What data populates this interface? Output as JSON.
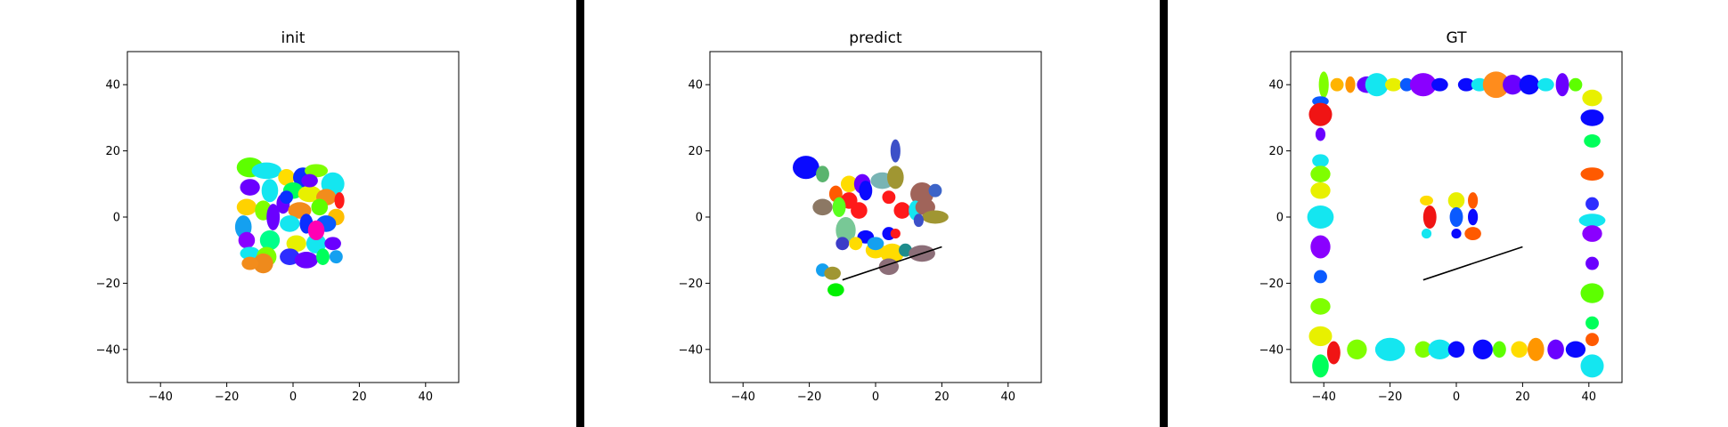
{
  "chart_data": [
    {
      "type": "scatter",
      "title": "init",
      "xlabel": "",
      "ylabel": "",
      "xlim": [
        -50,
        50
      ],
      "ylim": [
        -50,
        50
      ],
      "xticks": [
        -40,
        -20,
        0,
        20,
        40
      ],
      "yticks": [
        -40,
        -20,
        0,
        20,
        40
      ],
      "tick_labels_x": [
        "−40",
        "−20",
        "0",
        "20",
        "40"
      ],
      "tick_labels_y": [
        "−40",
        "−20",
        "0",
        "20",
        "40"
      ],
      "grid": false,
      "ellipses": [
        {
          "x": -13,
          "y": 15,
          "w": 8,
          "h": 6,
          "color": "#5dff00"
        },
        {
          "x": -8,
          "y": 14,
          "w": 9,
          "h": 5,
          "color": "#14e6f0"
        },
        {
          "x": -2,
          "y": 12,
          "w": 5,
          "h": 5,
          "color": "#ffdd00"
        },
        {
          "x": 3,
          "y": 12,
          "w": 6,
          "h": 6,
          "color": "#0a2fff"
        },
        {
          "x": 7,
          "y": 14,
          "w": 7,
          "h": 4,
          "color": "#7fff00"
        },
        {
          "x": 12,
          "y": 10,
          "w": 7,
          "h": 7,
          "color": "#14e6f0"
        },
        {
          "x": -13,
          "y": 9,
          "w": 6,
          "h": 5,
          "color": "#6a00ff"
        },
        {
          "x": -7,
          "y": 8,
          "w": 5,
          "h": 7,
          "color": "#14e6f0"
        },
        {
          "x": 0,
          "y": 8,
          "w": 6,
          "h": 5,
          "color": "#00ff5a"
        },
        {
          "x": 5,
          "y": 7,
          "w": 7,
          "h": 5,
          "color": "#e8f000"
        },
        {
          "x": 10,
          "y": 6,
          "w": 6,
          "h": 5,
          "color": "#f28c1c"
        },
        {
          "x": 14,
          "y": 5,
          "w": 3,
          "h": 5,
          "color": "#ff1a1a"
        },
        {
          "x": -14,
          "y": 3,
          "w": 6,
          "h": 5,
          "color": "#ffd200"
        },
        {
          "x": -9,
          "y": 2,
          "w": 5,
          "h": 6,
          "color": "#7fff00"
        },
        {
          "x": -3,
          "y": 4,
          "w": 4,
          "h": 6,
          "color": "#6a00ff"
        },
        {
          "x": 2,
          "y": 2,
          "w": 7,
          "h": 5,
          "color": "#f28c1c"
        },
        {
          "x": 8,
          "y": 3,
          "w": 5,
          "h": 5,
          "color": "#5dff00"
        },
        {
          "x": 13,
          "y": 0,
          "w": 5,
          "h": 5,
          "color": "#ffbe00"
        },
        {
          "x": -15,
          "y": -3,
          "w": 5,
          "h": 7,
          "color": "#14a0f0"
        },
        {
          "x": -6,
          "y": 0,
          "w": 4,
          "h": 8,
          "color": "#6a00ff"
        },
        {
          "x": -1,
          "y": -2,
          "w": 6,
          "h": 5,
          "color": "#14e6f0"
        },
        {
          "x": 4,
          "y": -2,
          "w": 4,
          "h": 6,
          "color": "#0a2fff"
        },
        {
          "x": 10,
          "y": -2,
          "w": 6,
          "h": 5,
          "color": "#0a5aff"
        },
        {
          "x": -14,
          "y": -7,
          "w": 5,
          "h": 5,
          "color": "#8a00ff"
        },
        {
          "x": -7,
          "y": -7,
          "w": 6,
          "h": 6,
          "color": "#00ff8a"
        },
        {
          "x": 1,
          "y": -8,
          "w": 6,
          "h": 5,
          "color": "#e8f000"
        },
        {
          "x": 7,
          "y": -8,
          "w": 6,
          "h": 6,
          "color": "#14e6f0"
        },
        {
          "x": 12,
          "y": -8,
          "w": 5,
          "h": 4,
          "color": "#6a00ff"
        },
        {
          "x": -13,
          "y": -11,
          "w": 6,
          "h": 4,
          "color": "#14e6f0"
        },
        {
          "x": -8,
          "y": -12,
          "w": 6,
          "h": 6,
          "color": "#7fff00"
        },
        {
          "x": -1,
          "y": -12,
          "w": 6,
          "h": 5,
          "color": "#2d2dff"
        },
        {
          "x": 4,
          "y": -13,
          "w": 7,
          "h": 5,
          "color": "#6a00ff"
        },
        {
          "x": 9,
          "y": -12,
          "w": 4,
          "h": 5,
          "color": "#00ff5a"
        },
        {
          "x": 13,
          "y": -12,
          "w": 4,
          "h": 4,
          "color": "#14a0f0"
        },
        {
          "x": -9,
          "y": -14,
          "w": 6,
          "h": 6,
          "color": "#ee8a1c"
        },
        {
          "x": -13,
          "y": -14,
          "w": 5,
          "h": 4,
          "color": "#f28c1c"
        },
        {
          "x": 5,
          "y": 11,
          "w": 5,
          "h": 4,
          "color": "#6a00ff"
        },
        {
          "x": -2,
          "y": 6,
          "w": 4,
          "h": 4,
          "color": "#0a2fff"
        },
        {
          "x": 7,
          "y": -4,
          "w": 5,
          "h": 6,
          "color": "#ff00b4"
        }
      ],
      "lines": []
    },
    {
      "type": "scatter",
      "title": "predict",
      "xlabel": "",
      "ylabel": "",
      "xlim": [
        -50,
        50
      ],
      "ylim": [
        -50,
        50
      ],
      "xticks": [
        -40,
        -20,
        0,
        20,
        40
      ],
      "yticks": [
        -40,
        -20,
        0,
        20,
        40
      ],
      "tick_labels_x": [
        "−40",
        "−20",
        "0",
        "20",
        "40"
      ],
      "tick_labels_y": [
        "−40",
        "−20",
        "0",
        "20",
        "40"
      ],
      "grid": false,
      "ellipses": [
        {
          "x": -21,
          "y": 15,
          "w": 8,
          "h": 7,
          "color": "#0a0aff"
        },
        {
          "x": -16,
          "y": 13,
          "w": 4,
          "h": 5,
          "color": "#5ab46e"
        },
        {
          "x": 6,
          "y": 20,
          "w": 3,
          "h": 7,
          "color": "#3c50c8"
        },
        {
          "x": -8,
          "y": 10,
          "w": 5,
          "h": 5,
          "color": "#ffdc00"
        },
        {
          "x": -4,
          "y": 10,
          "w": 5,
          "h": 6,
          "color": "#6a00ff"
        },
        {
          "x": 2,
          "y": 11,
          "w": 7,
          "h": 5,
          "color": "#78b4b4"
        },
        {
          "x": 6,
          "y": 12,
          "w": 5,
          "h": 7,
          "color": "#a09632"
        },
        {
          "x": -12,
          "y": 7,
          "w": 4,
          "h": 5,
          "color": "#ff5a00"
        },
        {
          "x": -8,
          "y": 5,
          "w": 5,
          "h": 5,
          "color": "#ff1a1a"
        },
        {
          "x": -3,
          "y": 8,
          "w": 4,
          "h": 6,
          "color": "#0a0aff"
        },
        {
          "x": 4,
          "y": 6,
          "w": 4,
          "h": 4,
          "color": "#ff1a1a"
        },
        {
          "x": 14,
          "y": 7,
          "w": 7,
          "h": 7,
          "color": "#a0645a"
        },
        {
          "x": 18,
          "y": 8,
          "w": 4,
          "h": 4,
          "color": "#3c64c8"
        },
        {
          "x": -16,
          "y": 3,
          "w": 6,
          "h": 5,
          "color": "#8c7864"
        },
        {
          "x": -11,
          "y": 3,
          "w": 4,
          "h": 6,
          "color": "#5aff1e"
        },
        {
          "x": -5,
          "y": 2,
          "w": 5,
          "h": 5,
          "color": "#ff1a1a"
        },
        {
          "x": 8,
          "y": 2,
          "w": 5,
          "h": 5,
          "color": "#ff1a1a"
        },
        {
          "x": 12,
          "y": 2,
          "w": 4,
          "h": 6,
          "color": "#14e6f0"
        },
        {
          "x": 15,
          "y": 3,
          "w": 6,
          "h": 5,
          "color": "#a0645a"
        },
        {
          "x": 18,
          "y": 0,
          "w": 8,
          "h": 4,
          "color": "#a09632"
        },
        {
          "x": 13,
          "y": -1,
          "w": 3,
          "h": 4,
          "color": "#3c50c8"
        },
        {
          "x": -9,
          "y": -4,
          "w": 6,
          "h": 8,
          "color": "#78c896"
        },
        {
          "x": -3,
          "y": -6,
          "w": 5,
          "h": 4,
          "color": "#0a0aff"
        },
        {
          "x": 4,
          "y": -5,
          "w": 4,
          "h": 4,
          "color": "#0a0aff"
        },
        {
          "x": 6,
          "y": -5,
          "w": 3,
          "h": 3,
          "color": "#ff1a1a"
        },
        {
          "x": -10,
          "y": -8,
          "w": 4,
          "h": 4,
          "color": "#3c3cc8"
        },
        {
          "x": -6,
          "y": -8,
          "w": 4,
          "h": 4,
          "color": "#ffdc00"
        },
        {
          "x": 0,
          "y": -10,
          "w": 6,
          "h": 5,
          "color": "#ffdc00"
        },
        {
          "x": 5,
          "y": -11,
          "w": 7,
          "h": 6,
          "color": "#ffdc00"
        },
        {
          "x": 9,
          "y": -10,
          "w": 4,
          "h": 4,
          "color": "#1e8c8c"
        },
        {
          "x": 14,
          "y": -11,
          "w": 8,
          "h": 5,
          "color": "#8c6e78"
        },
        {
          "x": 4,
          "y": -15,
          "w": 6,
          "h": 5,
          "color": "#8c6e78"
        },
        {
          "x": -16,
          "y": -16,
          "w": 4,
          "h": 4,
          "color": "#14a0f0"
        },
        {
          "x": -13,
          "y": -17,
          "w": 5,
          "h": 4,
          "color": "#a09632"
        },
        {
          "x": -12,
          "y": -22,
          "w": 5,
          "h": 4,
          "color": "#00f000"
        },
        {
          "x": 0,
          "y": -8,
          "w": 5,
          "h": 4,
          "color": "#14a0f0"
        }
      ],
      "lines": [
        {
          "x1": -10,
          "y1": -19,
          "x2": 20,
          "y2": -9,
          "color": "#000000"
        }
      ]
    },
    {
      "type": "scatter",
      "title": "GT",
      "xlabel": "",
      "ylabel": "",
      "xlim": [
        -50,
        50
      ],
      "ylim": [
        -50,
        50
      ],
      "xticks": [
        -40,
        -20,
        0,
        20,
        40
      ],
      "yticks": [
        -40,
        -20,
        0,
        20,
        40
      ],
      "tick_labels_x": [
        "−40",
        "−20",
        "0",
        "20",
        "40"
      ],
      "tick_labels_y": [
        "−40",
        "−20",
        "0",
        "20",
        "40"
      ],
      "grid": false,
      "ellipses": [
        {
          "x": -40,
          "y": 40,
          "w": 3,
          "h": 8,
          "color": "#7fff00"
        },
        {
          "x": -36,
          "y": 40,
          "w": 4,
          "h": 4,
          "color": "#ffb400"
        },
        {
          "x": -32,
          "y": 40,
          "w": 3,
          "h": 5,
          "color": "#ff9600"
        },
        {
          "x": -27,
          "y": 40,
          "w": 6,
          "h": 5,
          "color": "#6a00ff"
        },
        {
          "x": -24,
          "y": 40,
          "w": 7,
          "h": 7,
          "color": "#14e6f0"
        },
        {
          "x": -19,
          "y": 40,
          "w": 5,
          "h": 4,
          "color": "#e8f000"
        },
        {
          "x": -15,
          "y": 40,
          "w": 4,
          "h": 4,
          "color": "#0a5aff"
        },
        {
          "x": -10,
          "y": 40,
          "w": 8,
          "h": 7,
          "color": "#8a00ff"
        },
        {
          "x": -5,
          "y": 40,
          "w": 5,
          "h": 4,
          "color": "#0a0aff"
        },
        {
          "x": 3,
          "y": 40,
          "w": 5,
          "h": 4,
          "color": "#0a0aff"
        },
        {
          "x": 7,
          "y": 40,
          "w": 5,
          "h": 4,
          "color": "#14e6f0"
        },
        {
          "x": 12,
          "y": 40,
          "w": 8,
          "h": 8,
          "color": "#ff8c1c"
        },
        {
          "x": 17,
          "y": 40,
          "w": 6,
          "h": 6,
          "color": "#6a00ff"
        },
        {
          "x": 22,
          "y": 40,
          "w": 6,
          "h": 6,
          "color": "#0a0aff"
        },
        {
          "x": 27,
          "y": 40,
          "w": 5,
          "h": 4,
          "color": "#14e6f0"
        },
        {
          "x": 32,
          "y": 40,
          "w": 4,
          "h": 7,
          "color": "#6a00ff"
        },
        {
          "x": 36,
          "y": 40,
          "w": 4,
          "h": 4,
          "color": "#5dff00"
        },
        {
          "x": -41,
          "y": 35,
          "w": 5,
          "h": 3,
          "color": "#0a5aff"
        },
        {
          "x": -41,
          "y": 31,
          "w": 7,
          "h": 7,
          "color": "#f01414"
        },
        {
          "x": -41,
          "y": 25,
          "w": 3,
          "h": 4,
          "color": "#6a00ff"
        },
        {
          "x": -41,
          "y": 17,
          "w": 5,
          "h": 4,
          "color": "#14e6f0"
        },
        {
          "x": -41,
          "y": 13,
          "w": 6,
          "h": 5,
          "color": "#7fff00"
        },
        {
          "x": -41,
          "y": 8,
          "w": 6,
          "h": 5,
          "color": "#e8f000"
        },
        {
          "x": -41,
          "y": 0,
          "w": 8,
          "h": 7,
          "color": "#14e6f0"
        },
        {
          "x": -41,
          "y": -9,
          "w": 6,
          "h": 7,
          "color": "#8a00ff"
        },
        {
          "x": -41,
          "y": -18,
          "w": 4,
          "h": 4,
          "color": "#0a5aff"
        },
        {
          "x": -41,
          "y": -27,
          "w": 6,
          "h": 5,
          "color": "#7fff00"
        },
        {
          "x": -41,
          "y": -36,
          "w": 7,
          "h": 6,
          "color": "#e8f000"
        },
        {
          "x": -41,
          "y": -45,
          "w": 5,
          "h": 7,
          "color": "#00ff5a"
        },
        {
          "x": 41,
          "y": 36,
          "w": 6,
          "h": 5,
          "color": "#e8f000"
        },
        {
          "x": 41,
          "y": 30,
          "w": 7,
          "h": 5,
          "color": "#0a0aff"
        },
        {
          "x": 41,
          "y": 23,
          "w": 5,
          "h": 4,
          "color": "#00ff5a"
        },
        {
          "x": 41,
          "y": 13,
          "w": 7,
          "h": 4,
          "color": "#ff5a00"
        },
        {
          "x": 41,
          "y": 4,
          "w": 4,
          "h": 4,
          "color": "#2d2dff"
        },
        {
          "x": 41,
          "y": -1,
          "w": 8,
          "h": 4,
          "color": "#14e6f0"
        },
        {
          "x": 41,
          "y": -5,
          "w": 6,
          "h": 5,
          "color": "#8a00ff"
        },
        {
          "x": 41,
          "y": -14,
          "w": 4,
          "h": 4,
          "color": "#6a00ff"
        },
        {
          "x": 41,
          "y": -23,
          "w": 7,
          "h": 6,
          "color": "#5dff00"
        },
        {
          "x": 41,
          "y": -32,
          "w": 4,
          "h": 4,
          "color": "#00ff5a"
        },
        {
          "x": 41,
          "y": -37,
          "w": 4,
          "h": 4,
          "color": "#ff5a00"
        },
        {
          "x": 41,
          "y": -45,
          "w": 7,
          "h": 7,
          "color": "#14e6f0"
        },
        {
          "x": -37,
          "y": -41,
          "w": 4,
          "h": 7,
          "color": "#f01414"
        },
        {
          "x": -30,
          "y": -40,
          "w": 6,
          "h": 6,
          "color": "#7fff00"
        },
        {
          "x": -20,
          "y": -40,
          "w": 9,
          "h": 7,
          "color": "#14e6f0"
        },
        {
          "x": -10,
          "y": -40,
          "w": 5,
          "h": 5,
          "color": "#7fff00"
        },
        {
          "x": -5,
          "y": -40,
          "w": 7,
          "h": 6,
          "color": "#14e6f0"
        },
        {
          "x": 0,
          "y": -40,
          "w": 5,
          "h": 5,
          "color": "#0a0aff"
        },
        {
          "x": 8,
          "y": -40,
          "w": 6,
          "h": 6,
          "color": "#0a0aff"
        },
        {
          "x": 13,
          "y": -40,
          "w": 4,
          "h": 5,
          "color": "#5dff00"
        },
        {
          "x": 19,
          "y": -40,
          "w": 5,
          "h": 5,
          "color": "#ffdc00"
        },
        {
          "x": 24,
          "y": -40,
          "w": 5,
          "h": 7,
          "color": "#ff9600"
        },
        {
          "x": 30,
          "y": -40,
          "w": 5,
          "h": 6,
          "color": "#6a00ff"
        },
        {
          "x": 36,
          "y": -40,
          "w": 6,
          "h": 5,
          "color": "#0a0aff"
        },
        {
          "x": -9,
          "y": 5,
          "w": 4,
          "h": 3,
          "color": "#ffdc00"
        },
        {
          "x": 0,
          "y": 5,
          "w": 5,
          "h": 5,
          "color": "#e8f000"
        },
        {
          "x": 5,
          "y": 5,
          "w": 3,
          "h": 5,
          "color": "#ff5a00"
        },
        {
          "x": -8,
          "y": 0,
          "w": 4,
          "h": 7,
          "color": "#f01414"
        },
        {
          "x": 0,
          "y": 0,
          "w": 4,
          "h": 6,
          "color": "#0a5aff"
        },
        {
          "x": 5,
          "y": 0,
          "w": 3,
          "h": 5,
          "color": "#0a0aff"
        },
        {
          "x": -9,
          "y": -5,
          "w": 3,
          "h": 3,
          "color": "#14e6f0"
        },
        {
          "x": 0,
          "y": -5,
          "w": 3,
          "h": 3,
          "color": "#0a0aff"
        },
        {
          "x": 5,
          "y": -5,
          "w": 5,
          "h": 4,
          "color": "#ff5a00"
        }
      ],
      "lines": [
        {
          "x1": -10,
          "y1": -19,
          "x2": 20,
          "y2": -9,
          "color": "#000000"
        }
      ]
    }
  ]
}
